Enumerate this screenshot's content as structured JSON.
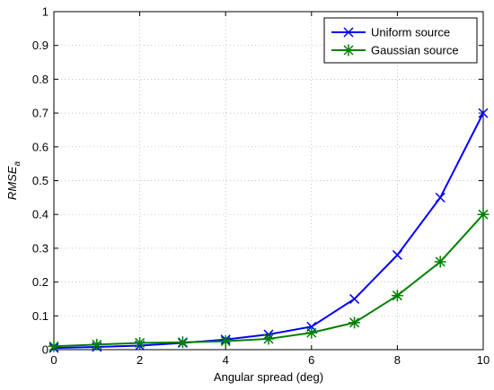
{
  "chart_data": {
    "type": "line",
    "xlabel": "Angular spread (deg)",
    "ylabel_main": "RMSE",
    "ylabel_sub": "a",
    "xlim": [
      0,
      10
    ],
    "ylim": [
      0,
      1
    ],
    "x_ticks": [
      0,
      2,
      4,
      6,
      8,
      10
    ],
    "y_ticks": [
      0,
      0.1,
      0.2,
      0.3,
      0.4,
      0.5,
      0.6,
      0.7,
      0.8,
      0.9,
      1
    ],
    "x_tick_labels": [
      "0",
      "2",
      "4",
      "6",
      "8",
      "10"
    ],
    "y_tick_labels": [
      "0",
      "0.1",
      "0.2",
      "0.3",
      "0.4",
      "0.5",
      "0.6",
      "0.7",
      "0.8",
      "0.9",
      "1"
    ],
    "grid": true,
    "legend_position": "top-right",
    "x": [
      0,
      1,
      2,
      3,
      4,
      5,
      6,
      7,
      8,
      9,
      10
    ],
    "series": [
      {
        "name": "Uniform source",
        "color": "#0000ff",
        "marker": "x",
        "values": [
          0.005,
          0.008,
          0.012,
          0.02,
          0.03,
          0.045,
          0.068,
          0.15,
          0.28,
          0.45,
          0.7
        ]
      },
      {
        "name": "Gaussian source",
        "color": "#008000",
        "marker": "asterisk",
        "values": [
          0.01,
          0.015,
          0.02,
          0.022,
          0.025,
          0.032,
          0.05,
          0.08,
          0.16,
          0.26,
          0.4
        ]
      }
    ]
  }
}
